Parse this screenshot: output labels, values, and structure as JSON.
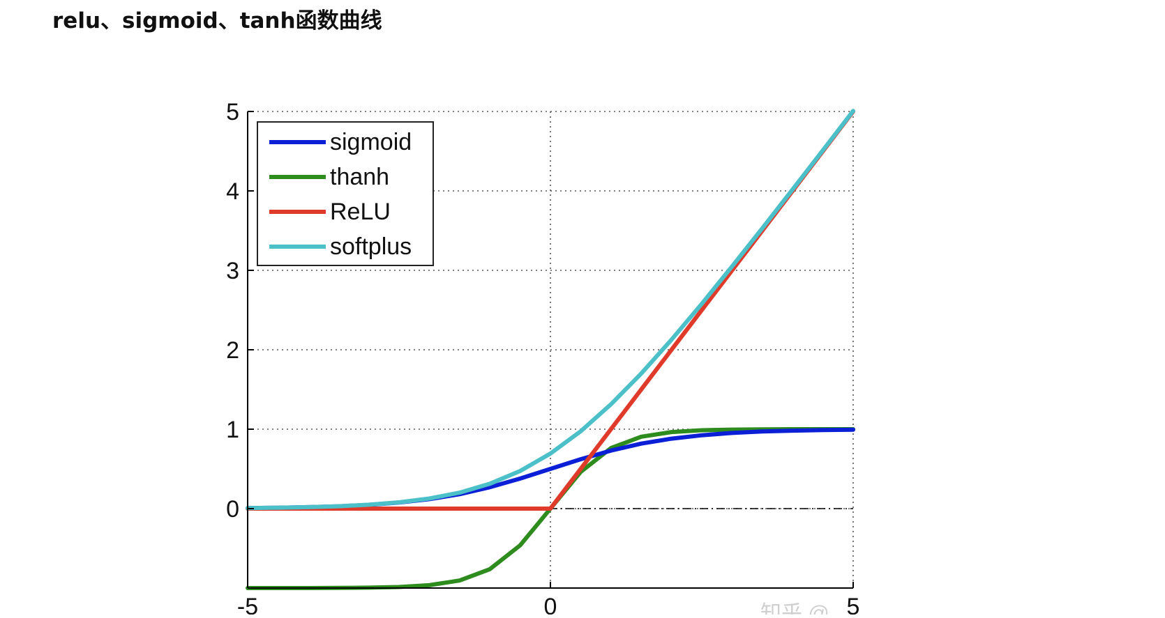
{
  "page": {
    "title": "relu、sigmoid、tanh函数曲线"
  },
  "watermark": "知乎 @...",
  "chart_data": {
    "type": "line",
    "title": "",
    "xlabel": "",
    "ylabel": "",
    "xlim": [
      -5,
      5
    ],
    "ylim": [
      -1,
      5
    ],
    "xticks": [
      -5,
      0,
      5
    ],
    "xtick_labels": [
      "-5",
      "0",
      "5"
    ],
    "yticks": [
      0,
      1,
      2,
      3,
      4,
      5
    ],
    "ytick_labels": [
      "0",
      "1",
      "2",
      "3",
      "4",
      "5"
    ],
    "grid": "dotted",
    "legend_position": "top-left",
    "reference_line": {
      "y": 0,
      "style": "dash-dot",
      "color": "#000000"
    },
    "x": [
      -5,
      -4.5,
      -4,
      -3.5,
      -3,
      -2.5,
      -2,
      -1.5,
      -1,
      -0.5,
      0,
      0.5,
      1,
      1.5,
      2,
      2.5,
      3,
      3.5,
      4,
      4.5,
      5
    ],
    "series": [
      {
        "name": "sigmoid",
        "color": "#0a1fd6",
        "values": [
          0.0067,
          0.011,
          0.018,
          0.029,
          0.047,
          0.076,
          0.119,
          0.182,
          0.269,
          0.378,
          0.5,
          0.622,
          0.731,
          0.818,
          0.881,
          0.924,
          0.953,
          0.971,
          0.982,
          0.989,
          0.993
        ]
      },
      {
        "name": "thanh",
        "color": "#2e8b1e",
        "values": [
          -1.0,
          -1.0,
          -1.0,
          -0.998,
          -0.995,
          -0.987,
          -0.964,
          -0.905,
          -0.762,
          -0.462,
          0,
          0.462,
          0.762,
          0.905,
          0.964,
          0.987,
          0.995,
          0.998,
          1.0,
          1.0,
          1.0
        ]
      },
      {
        "name": "ReLU",
        "color": "#e03a2a",
        "values": [
          0,
          0,
          0,
          0,
          0,
          0,
          0,
          0,
          0,
          0,
          0,
          0.5,
          1,
          1.5,
          2,
          2.5,
          3,
          3.5,
          4,
          4.5,
          5
        ]
      },
      {
        "name": "softplus",
        "color": "#4cc0c8",
        "values": [
          0.0067,
          0.011,
          0.018,
          0.03,
          0.049,
          0.079,
          0.127,
          0.201,
          0.313,
          0.474,
          0.693,
          0.974,
          1.313,
          1.701,
          2.127,
          2.579,
          3.049,
          3.53,
          4.018,
          4.511,
          5.007
        ]
      }
    ]
  }
}
